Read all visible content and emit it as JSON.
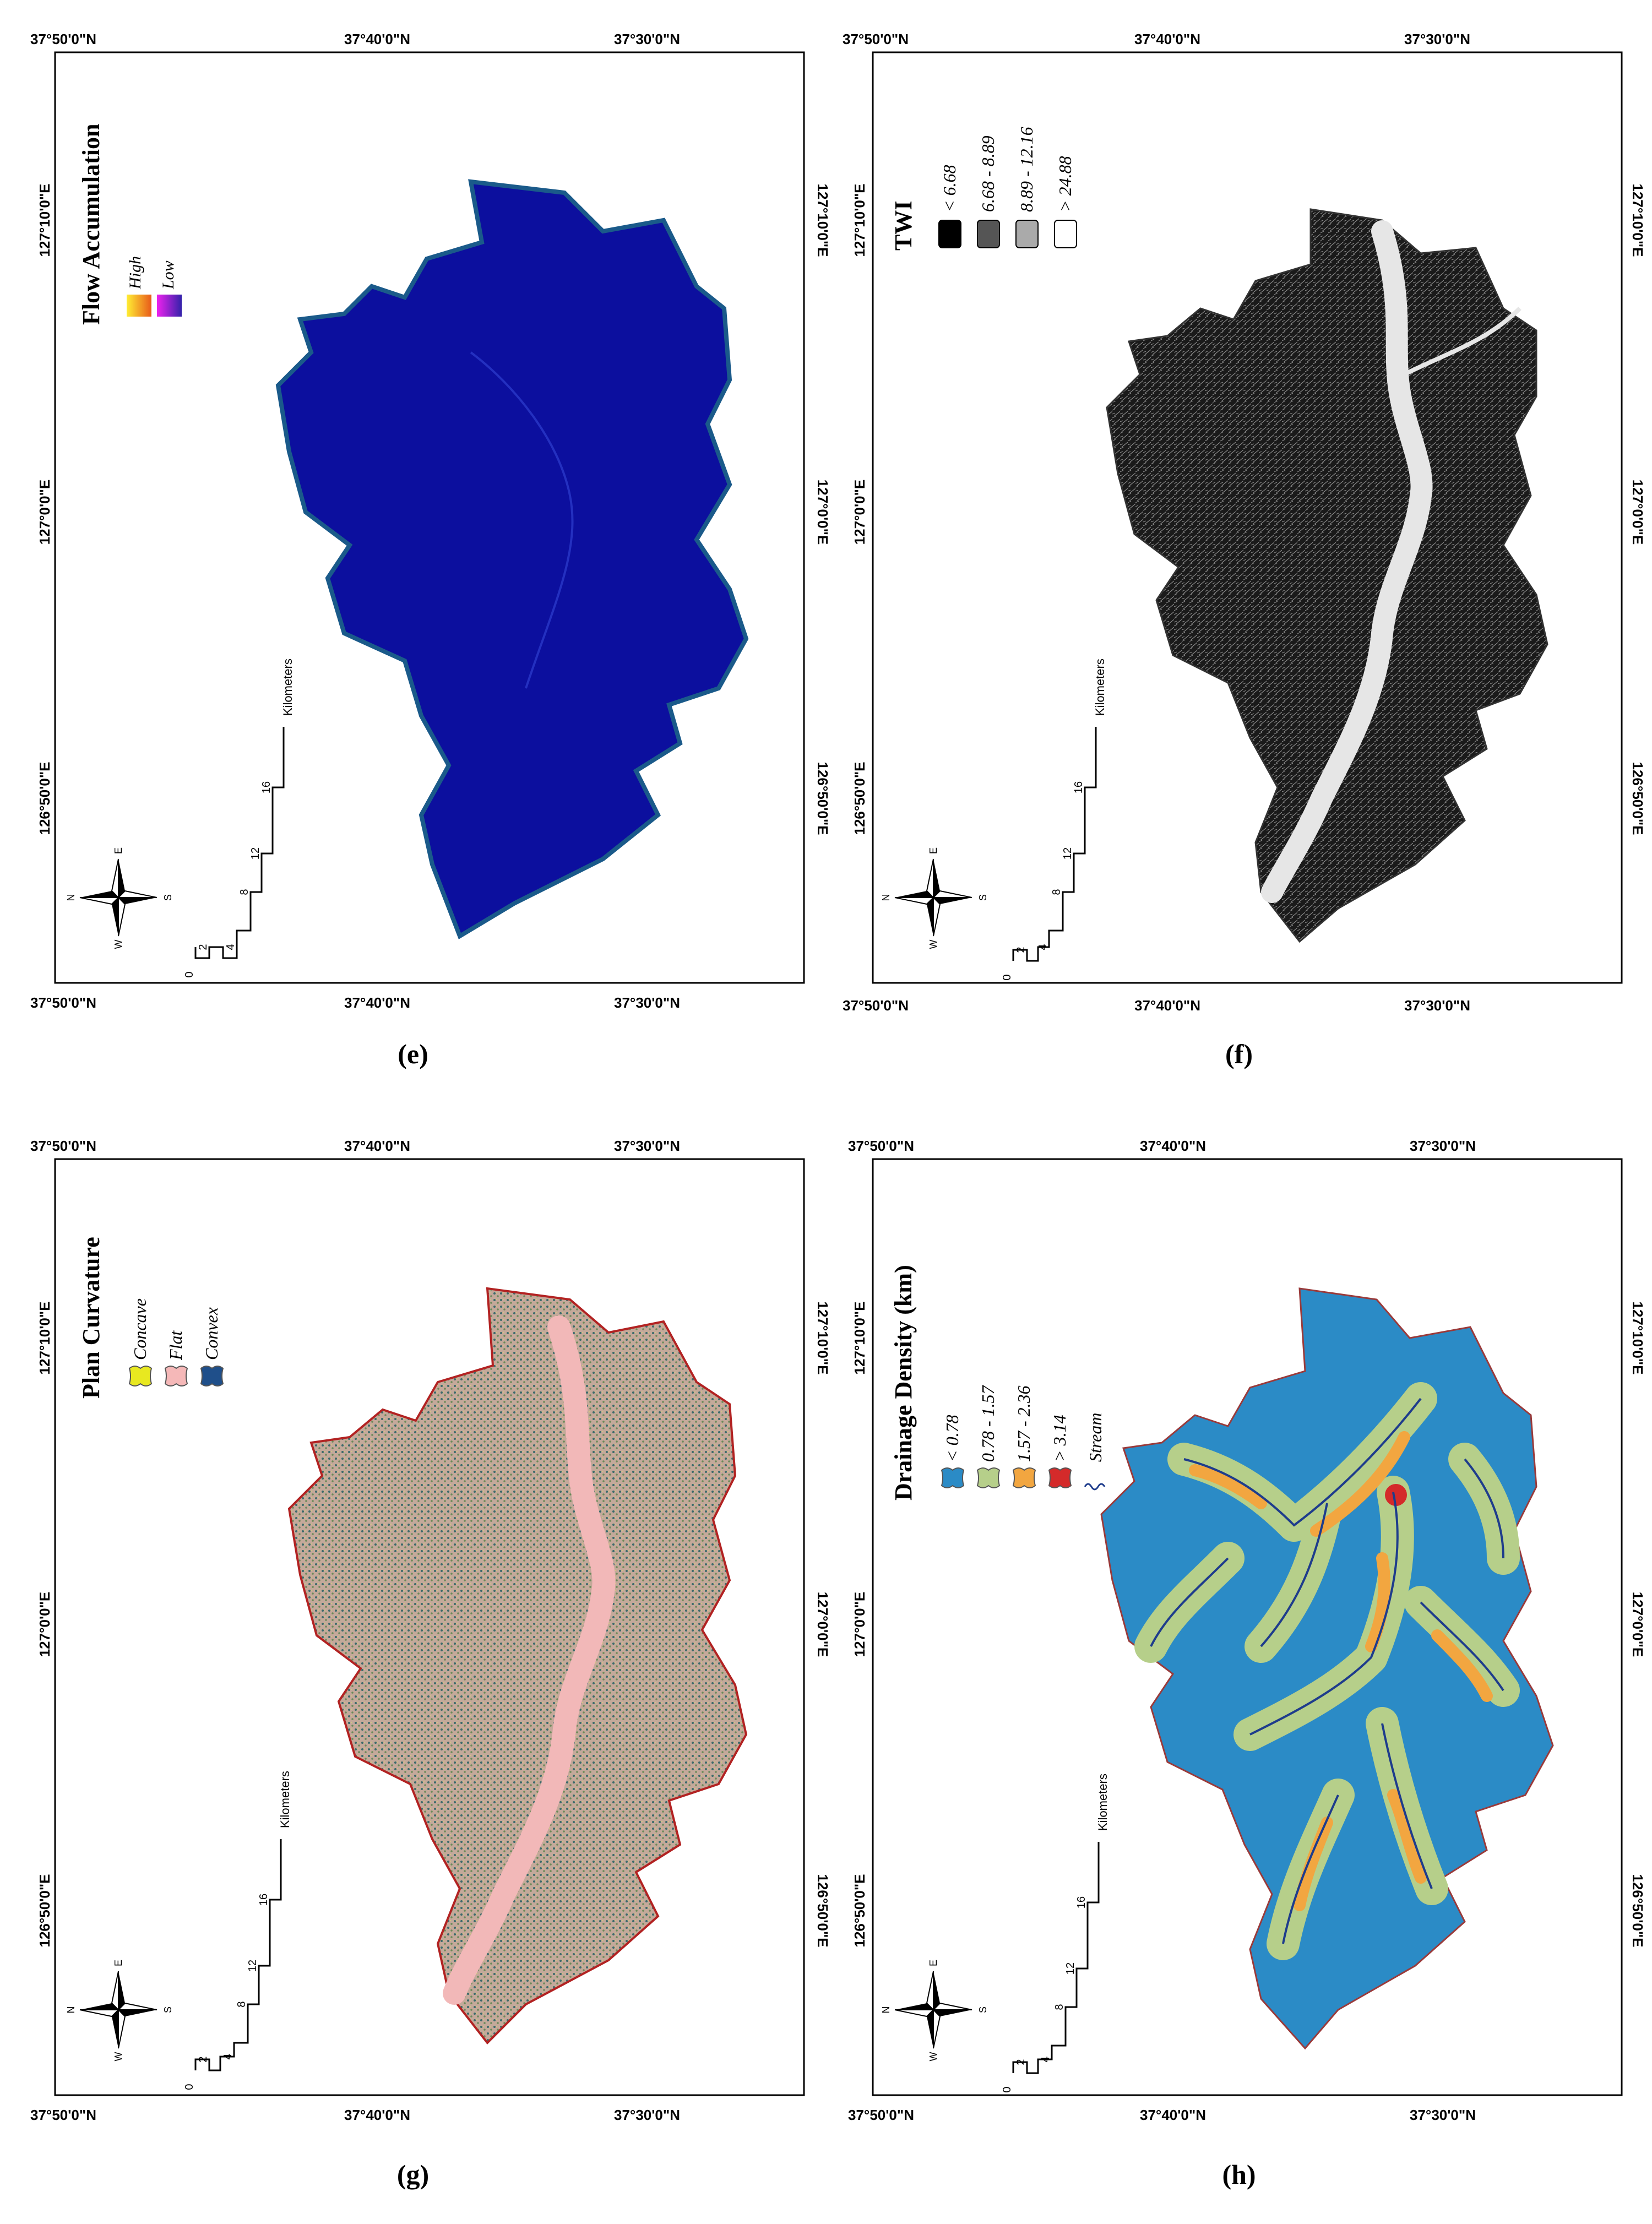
{
  "coords": {
    "lat_labels": [
      "37°50'0\"N",
      "37°40'0\"N",
      "37°30'0\"N"
    ],
    "lon_labels": [
      "127°10'0\"E",
      "127°0'0\"E",
      "126°50'0\"E"
    ]
  },
  "scale": {
    "ticks": [
      "0",
      "2",
      "4",
      "8",
      "12",
      "16"
    ],
    "unit": "Kilometers"
  },
  "compass": {
    "n": "N",
    "e": "E",
    "s": "S",
    "w": "W"
  },
  "colors": {
    "flow_fill": "#0c0f9e",
    "flow_edge": "#1a5a8a",
    "twi_dark": "#111111",
    "twi_river": "#e6e6e6",
    "curv_fill": "#a89a86",
    "curv_river": "#f2b8b8",
    "curv_edge": "#b22222",
    "dd_low": "#2b8bc6",
    "dd_mid": "#b6cf8a",
    "dd_high": "#f2a640",
    "dd_top": "#d42a2a",
    "stream": "#1e3c8c"
  },
  "panels": [
    {
      "id": "e",
      "caption": "(e)",
      "legend_title": "Flow Accumulation",
      "legend_items": [
        "High",
        "Low"
      ]
    },
    {
      "id": "f",
      "caption": "(f)",
      "legend_title": "TWI",
      "legend_items": [
        "< 6.68",
        "6.68 - 8.89",
        "8.89 - 12.16",
        "> 24.88"
      ]
    },
    {
      "id": "g",
      "caption": "(g)",
      "legend_title": "Plan Curvature",
      "legend_items": [
        "Concave",
        "Flat",
        "Convex"
      ]
    },
    {
      "id": "h",
      "caption": "(h)",
      "legend_title": "Drainage Density (km)",
      "legend_items": [
        "< 0.78",
        "0.78 - 1.57",
        "1.57 - 2.36",
        "> 3.14",
        "Stream"
      ]
    }
  ]
}
